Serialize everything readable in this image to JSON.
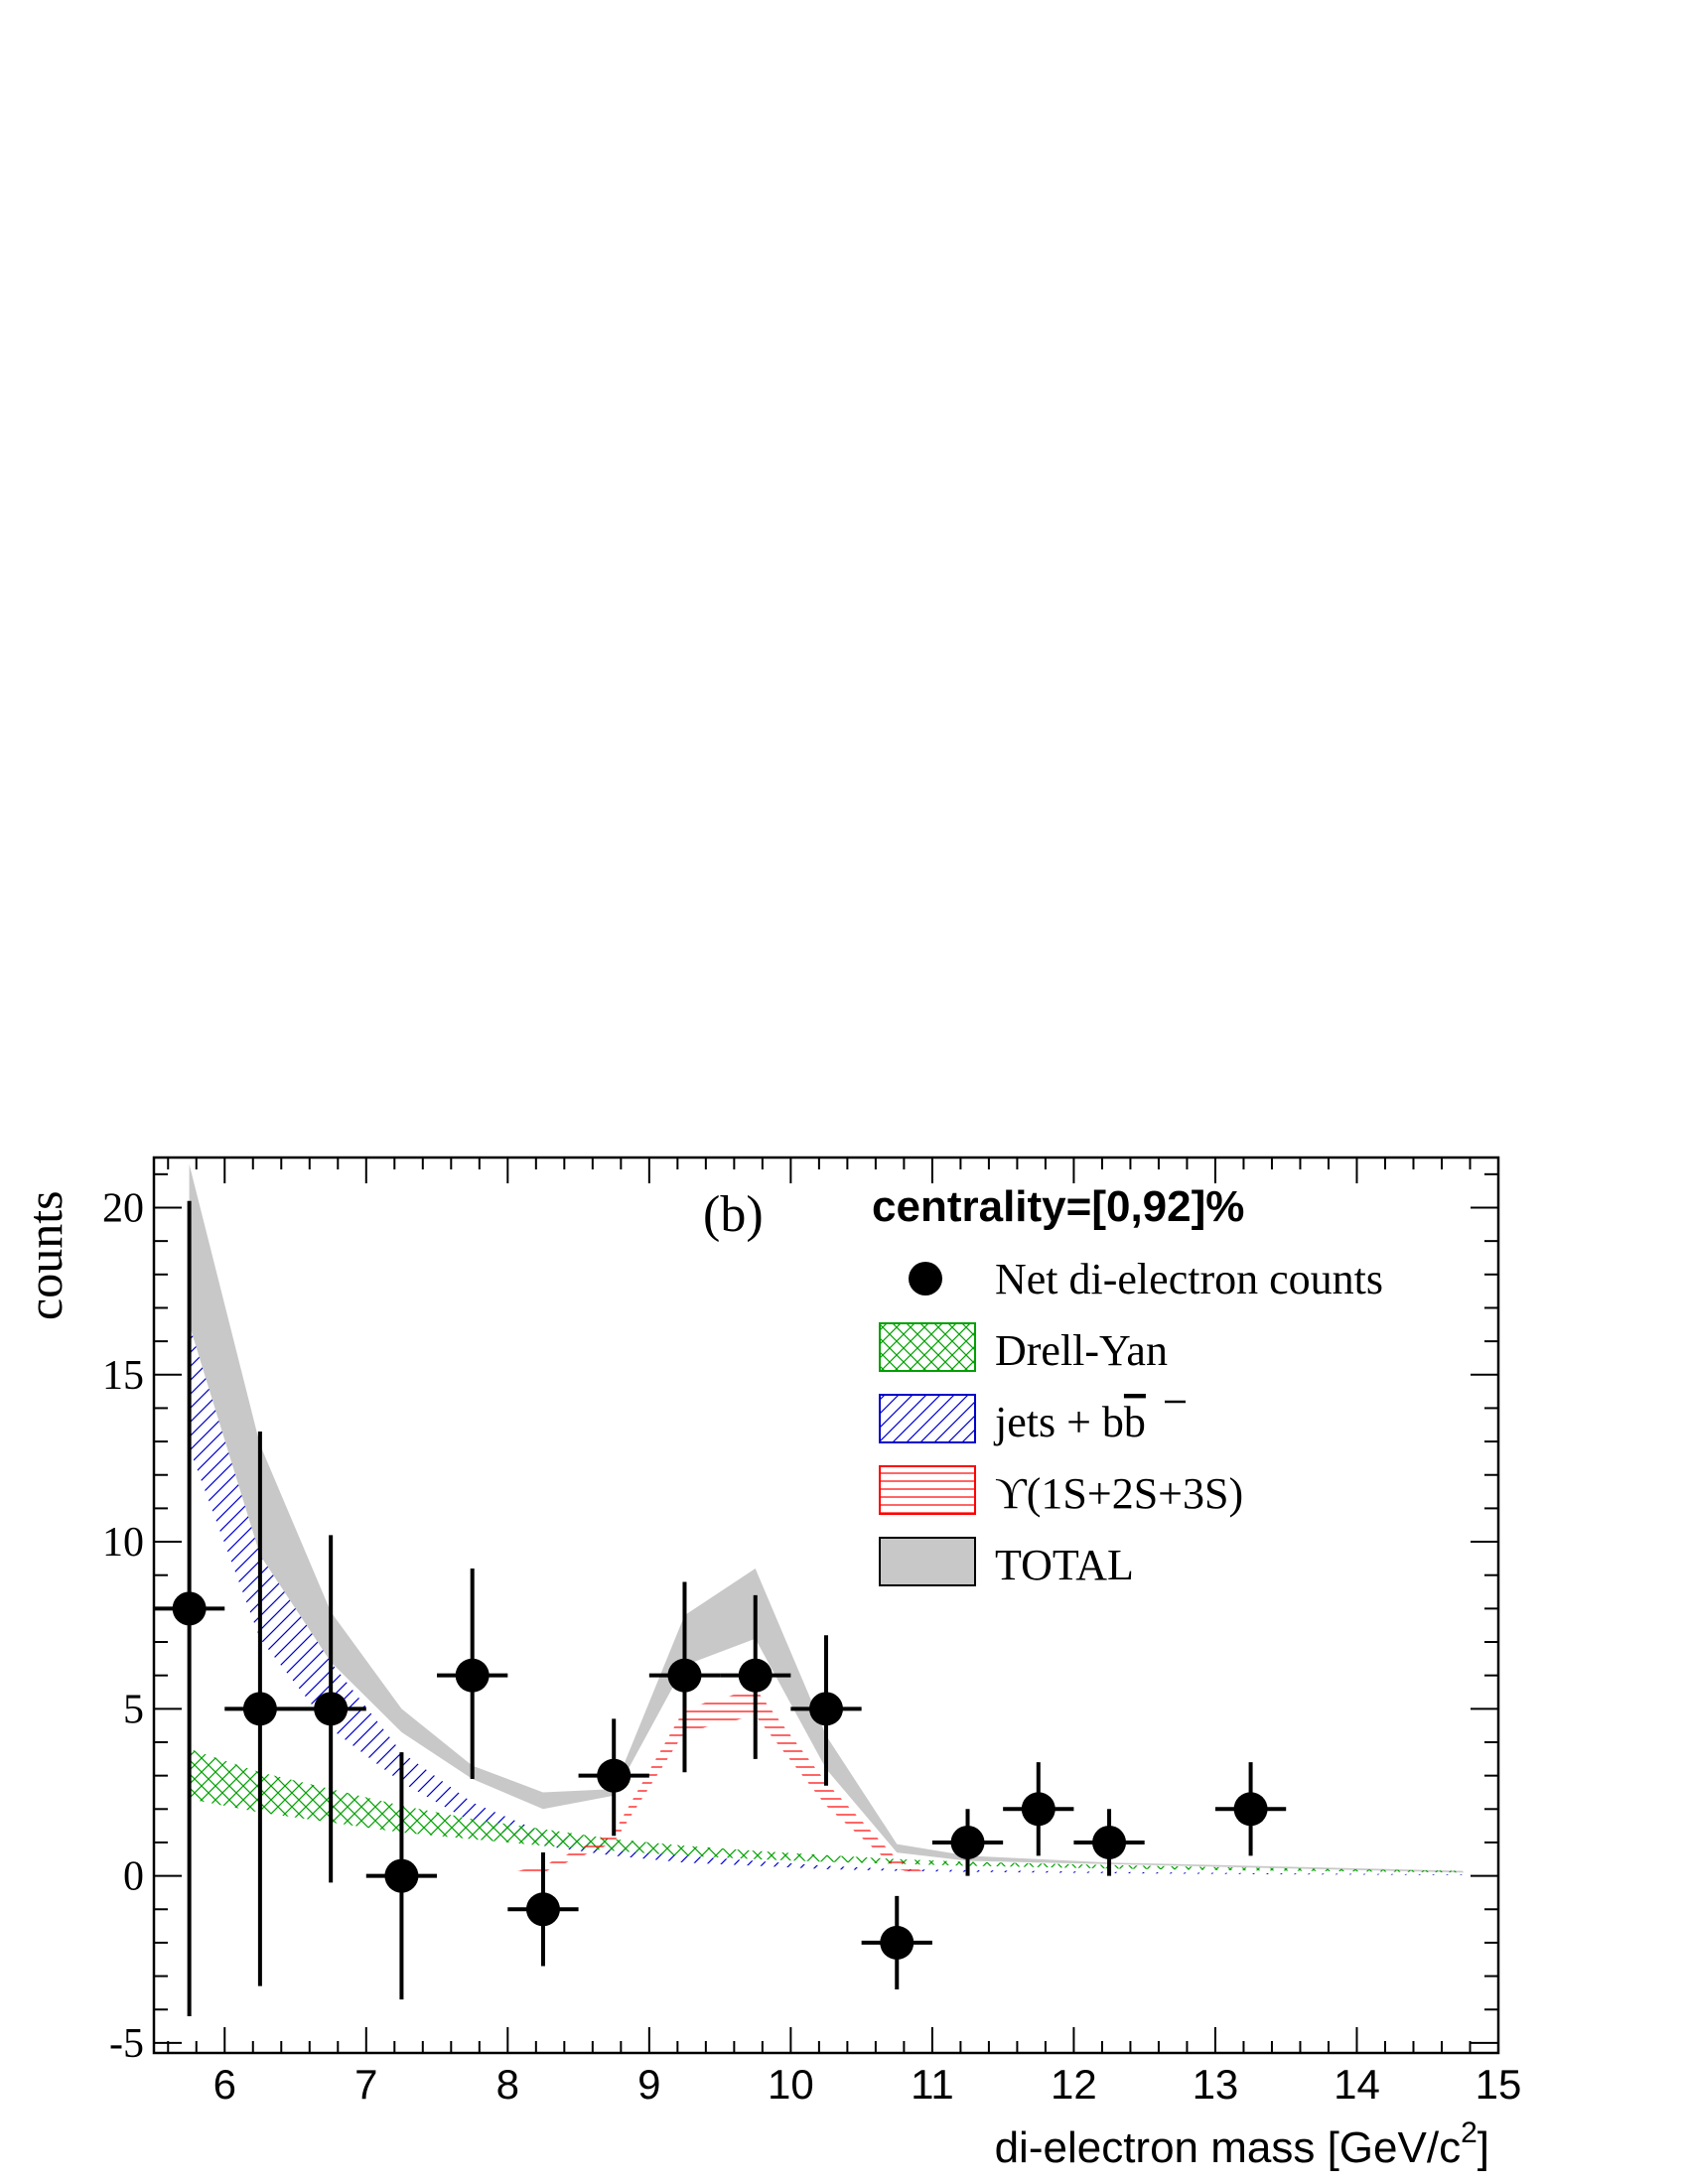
{
  "chart_data": {
    "type": "scatter",
    "panel_label": "(b)",
    "legend_title": "centrality=[0,92]%",
    "xlabel": "di-electron mass [GeV/c",
    "xlabel_sup": "2",
    "xlabel_end": "]",
    "ylabel": "counts",
    "xlim": [
      5.5,
      15
    ],
    "ylim": [
      -5.3,
      21.5
    ],
    "x_ticks": [
      6,
      7,
      8,
      9,
      10,
      11,
      12,
      13,
      14,
      15
    ],
    "y_ticks": [
      -5,
      0,
      5,
      10,
      15,
      20
    ],
    "legend_position": "top-right",
    "legend": [
      {
        "key": "data",
        "label": "Net di-electron counts",
        "style": "marker"
      },
      {
        "key": "dy",
        "label": "Drell-Yan",
        "style": "crosshatch",
        "color": "#00a000"
      },
      {
        "key": "jets",
        "label": "jets + b",
        "label_overline": "b",
        "style": "diagonal-hatch",
        "color": "#0000cc"
      },
      {
        "key": "ups",
        "label": "ϒ(1S+2S+3S)",
        "style": "horizontal-hatch",
        "color": "#ff0000"
      },
      {
        "key": "total",
        "label": "TOTAL",
        "style": "filled",
        "color": "#c8c8c8"
      }
    ],
    "series": [
      {
        "key": "data",
        "name": "Net di-electron counts",
        "x": [
          5.75,
          6.25,
          6.75,
          7.25,
          7.75,
          8.25,
          8.75,
          9.25,
          9.75,
          10.25,
          10.75,
          11.25,
          11.75,
          12.25,
          13.25
        ],
        "y": [
          8,
          5,
          5,
          0,
          6,
          -1,
          3,
          6,
          6,
          5,
          -2,
          1,
          2,
          1,
          2
        ],
        "y_err_low": [
          12.2,
          8.3,
          5.2,
          3.7,
          3.1,
          1.7,
          1.8,
          2.9,
          2.5,
          2.3,
          1.4,
          1.0,
          1.4,
          1.0,
          1.4
        ],
        "y_err_high": [
          12.2,
          8.3,
          5.2,
          3.7,
          3.2,
          1.7,
          1.7,
          2.8,
          2.4,
          2.2,
          1.4,
          1.0,
          1.4,
          1.0,
          1.4
        ],
        "x_err": 0.25
      },
      {
        "key": "total",
        "name": "TOTAL",
        "x": [
          5.75,
          6.25,
          6.75,
          7.25,
          7.75,
          8.25,
          8.75,
          9.25,
          9.75,
          10.25,
          10.75,
          11.25,
          11.75,
          12.25,
          13.25,
          14.75
        ],
        "low": [
          16.5,
          9.6,
          6.4,
          4.3,
          2.9,
          2.0,
          2.4,
          6.3,
          7.1,
          3.2,
          0.7,
          0.45,
          0.4,
          0.35,
          0.25,
          0.1
        ],
        "high": [
          21.3,
          12.9,
          7.9,
          5.0,
          3.3,
          2.5,
          2.6,
          7.8,
          9.2,
          4.2,
          0.95,
          0.6,
          0.5,
          0.4,
          0.3,
          0.15
        ]
      },
      {
        "key": "jets",
        "name": "jets + bb",
        "x": [
          5.75,
          6.25,
          6.75,
          7.25,
          7.75,
          8.25,
          8.75,
          9.25,
          9.75,
          10.25,
          10.75,
          11.25,
          12.25,
          13.25,
          14.75
        ],
        "low": [
          12.8,
          7.1,
          4.4,
          2.8,
          1.6,
          0.9,
          0.6,
          0.4,
          0.3,
          0.2,
          0.15,
          0.12,
          0.08,
          0.05,
          0.02
        ],
        "high": [
          16.5,
          9.6,
          6.4,
          3.7,
          2.2,
          1.3,
          0.9,
          0.6,
          0.45,
          0.3,
          0.2,
          0.17,
          0.12,
          0.08,
          0.04
        ]
      },
      {
        "key": "dy",
        "name": "Drell-Yan",
        "x": [
          5.75,
          6.25,
          6.75,
          7.25,
          7.75,
          8.25,
          8.75,
          9.25,
          9.75,
          10.25,
          10.75,
          11.25,
          12.25,
          13.25,
          14.75
        ],
        "low": [
          2.3,
          1.9,
          1.6,
          1.3,
          1.1,
          0.9,
          0.75,
          0.6,
          0.5,
          0.42,
          0.36,
          0.3,
          0.22,
          0.16,
          0.1
        ],
        "high": [
          3.8,
          3.1,
          2.6,
          2.1,
          1.7,
          1.4,
          1.1,
          0.9,
          0.75,
          0.62,
          0.5,
          0.42,
          0.32,
          0.24,
          0.15
        ]
      },
      {
        "key": "ups",
        "name": "ϒ(1S+2S+3S)",
        "x": [
          7.9,
          8.25,
          8.75,
          9.25,
          9.75,
          10.25,
          10.75,
          11.0
        ],
        "low": [
          0.0,
          0.1,
          1.0,
          4.3,
          4.8,
          2.1,
          0.2,
          0.0
        ],
        "high": [
          0.0,
          0.3,
          1.3,
          5.0,
          5.6,
          2.8,
          0.5,
          0.0
        ]
      }
    ]
  }
}
